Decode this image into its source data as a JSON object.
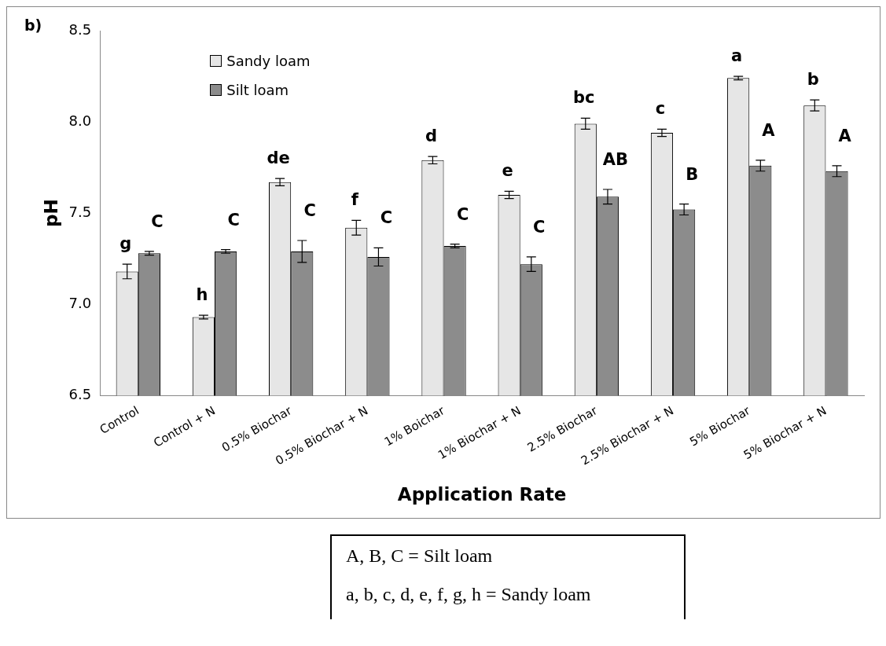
{
  "chart_data": {
    "type": "bar",
    "xlabel": "Application Rate",
    "ylabel": "pH",
    "categories": [
      "Control",
      "Control + N",
      "0.5% Biochar",
      "0.5% Biochar + N",
      "1% Boichar",
      "1% Biochar + N",
      "2.5% Biochar",
      "2.5% Biochar + N",
      "5% Biochar",
      "5% Biochar + N"
    ],
    "series": [
      {
        "name": "Sandy loam",
        "color": "#e6e6e6",
        "values": [
          7.18,
          6.93,
          7.67,
          7.42,
          7.79,
          7.6,
          7.99,
          7.94,
          8.24,
          8.09
        ],
        "errors": [
          0.04,
          0.01,
          0.02,
          0.04,
          0.02,
          0.02,
          0.03,
          0.02,
          0.01,
          0.03
        ]
      },
      {
        "name": "Silt loam",
        "color": "#8c8c8c",
        "values": [
          7.28,
          7.29,
          7.29,
          7.26,
          7.32,
          7.22,
          7.59,
          7.52,
          7.76,
          7.73
        ],
        "errors": [
          0.01,
          0.01,
          0.06,
          0.05,
          0.01,
          0.04,
          0.04,
          0.03,
          0.03,
          0.03
        ]
      }
    ],
    "ylim": [
      6.5,
      8.5
    ],
    "yticks": [
      {
        "value": 6.5,
        "label": "6.5"
      },
      {
        "value": 7,
        "label": "7.0"
      },
      {
        "value": 7.5,
        "label": "7.5"
      },
      {
        "value": 8,
        "label": "8.0"
      },
      {
        "value": 8.5,
        "label": "8.5"
      }
    ],
    "grid": false,
    "legend": "top left",
    "annotations": [
      "b)",
      "A, B, C = Silt loam",
      "a, b, c, d, e, f, g, h = Sandy loam",
      {
        "text": "g",
        "x": "Control",
        "y": 7.18
      },
      {
        "text": "C",
        "x": "Control",
        "y": 7.28
      },
      {
        "text": "h",
        "x": "Control + N",
        "y": 6.93
      },
      {
        "text": "C",
        "x": "Control + N",
        "y": 7.29
      },
      {
        "text": "de",
        "x": "0.5% Biochar",
        "y": 7.67
      },
      {
        "text": "C",
        "x": "0.5% Biochar",
        "y": 7.29
      },
      {
        "text": "f",
        "x": "0.5% Biochar + N",
        "y": 7.42
      },
      {
        "text": "C",
        "x": "0.5% Biochar + N",
        "y": 7.26
      },
      {
        "text": "d",
        "x": "1% Boichar",
        "y": 7.79
      },
      {
        "text": "C",
        "x": "1% Boichar",
        "y": 7.32
      },
      {
        "text": "e",
        "x": "1% Biochar + N",
        "y": 7.6
      },
      {
        "text": "C",
        "x": "1% Biochar + N",
        "y": 7.22
      },
      {
        "text": "bc",
        "x": "2.5% Biochar",
        "y": 7.99
      },
      {
        "text": "AB",
        "x": "2.5% Biochar",
        "y": 7.59
      },
      {
        "text": "c",
        "x": "2.5% Biochar + N",
        "y": 7.94
      },
      {
        "text": "B",
        "x": "2.5% Biochar + N",
        "y": 7.52
      },
      {
        "text": "a",
        "x": "5% Biochar",
        "y": 8.24
      },
      {
        "text": "A",
        "x": "5% Biochar",
        "y": 7.76
      },
      {
        "text": "b",
        "x": "5% Biochar + N",
        "y": 8.09
      },
      {
        "text": "A",
        "x": "5% Biochar + N",
        "y": 7.73
      }
    ]
  }
}
